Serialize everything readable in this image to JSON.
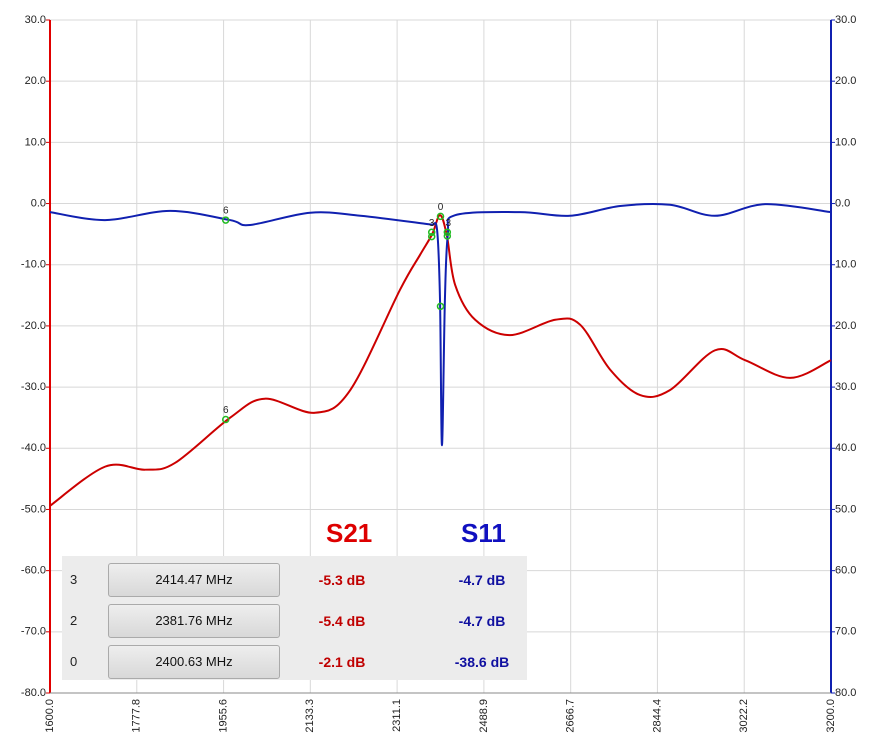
{
  "chart_data": {
    "type": "line",
    "xlim": [
      1600,
      3200
    ],
    "xticks": [
      {
        "value": 1600,
        "label": "1600.0"
      },
      {
        "value": 1777.8,
        "label": "1777.8"
      },
      {
        "value": 1955.6,
        "label": "1955.6"
      },
      {
        "value": 2133.3,
        "label": "2133.3"
      },
      {
        "value": 2311.1,
        "label": "2311.1"
      },
      {
        "value": 2488.9,
        "label": "2488.9"
      },
      {
        "value": 2666.7,
        "label": "2666.7"
      },
      {
        "value": 2844.4,
        "label": "2844.4"
      },
      {
        "value": 3022.2,
        "label": "3022.2"
      },
      {
        "value": 3200,
        "label": "3200.0"
      }
    ],
    "ylim": [
      -80,
      30
    ],
    "yticks": [
      {
        "value": 30,
        "label": "30.0"
      },
      {
        "value": 20,
        "label": "20.0"
      },
      {
        "value": 10,
        "label": "10.0"
      },
      {
        "value": 0,
        "label": "0.0"
      },
      {
        "value": -10,
        "label": "-10.0"
      },
      {
        "value": -20,
        "label": "-20.0"
      },
      {
        "value": -30,
        "label": "-30.0"
      },
      {
        "value": -40,
        "label": "-40.0"
      },
      {
        "value": -50,
        "label": "-50.0"
      },
      {
        "value": -60,
        "label": "-60.0"
      },
      {
        "value": -70,
        "label": "-70.0"
      },
      {
        "value": -80,
        "label": "-80.0"
      }
    ],
    "y2lim": [
      -80,
      30
    ],
    "y2ticks": [
      {
        "value": 30,
        "label": "30.0"
      },
      {
        "value": 20,
        "label": "20.0"
      },
      {
        "value": 10,
        "label": "10.0"
      },
      {
        "value": 0,
        "label": "0.0"
      },
      {
        "value": -10,
        "label": "10.0"
      },
      {
        "value": -20,
        "label": "20.0"
      },
      {
        "value": -30,
        "label": "30.0"
      },
      {
        "value": -40,
        "label": "40.0"
      },
      {
        "value": -50,
        "label": "50.0"
      },
      {
        "value": -60,
        "label": "60.0"
      },
      {
        "value": -70,
        "label": "70.0"
      },
      {
        "value": -80,
        "label": "80.0"
      }
    ],
    "grid": true,
    "series": [
      {
        "name": "S21",
        "color": "#cc0000",
        "x": [
          1600,
          1713,
          1795,
          1856,
          1969,
          2040,
          2143,
          2215,
          2317,
          2358,
          2383,
          2399,
          2413,
          2430,
          2471,
          2542,
          2635,
          2686,
          2747,
          2809,
          2870,
          2962,
          3024,
          3116,
          3200
        ],
        "values": [
          -49.4,
          -43.0,
          -43.5,
          -42.4,
          -35.0,
          -31.9,
          -34.2,
          -30.5,
          -14.1,
          -8.4,
          -5.0,
          -1.9,
          -5.2,
          -13.3,
          -19.0,
          -21.5,
          -19.0,
          -19.8,
          -27.1,
          -31.3,
          -30.5,
          -24.0,
          -25.6,
          -28.5,
          -25.6
        ]
      },
      {
        "name": "S11",
        "color": "#1020b0",
        "x": [
          1600,
          1713,
          1846,
          1969,
          2010,
          2133,
          2236,
          2368,
          2383,
          2393,
          2399,
          2403,
          2409,
          2415,
          2430,
          2563,
          2665,
          2768,
          2870,
          2962,
          3065,
          3200
        ],
        "values": [
          -1.4,
          -2.7,
          -1.2,
          -2.7,
          -3.5,
          -1.5,
          -2.0,
          -3.3,
          -3.5,
          -4.3,
          -15.8,
          -39.5,
          -15.8,
          -5.1,
          -1.9,
          -1.4,
          -2.0,
          -0.4,
          -0.2,
          -2.0,
          -0.1,
          -1.4
        ]
      }
    ],
    "points": [
      {
        "x": 1960,
        "y": -35.3,
        "label": "6"
      },
      {
        "x": 1960,
        "y": -2.7,
        "label": "6"
      },
      {
        "x": 2382,
        "y": -4.7,
        "label": "3"
      },
      {
        "x": 2382,
        "y": -5.4
      },
      {
        "x": 2400,
        "y": -2.1,
        "label": "0"
      },
      {
        "x": 2400,
        "y": -16.8
      },
      {
        "x": 2414,
        "y": -4.7,
        "label": "3"
      },
      {
        "x": 2414,
        "y": -5.3
      }
    ]
  },
  "table": {
    "rows": [
      {
        "id": "3",
        "freq": "2414.47 MHz",
        "s21": "-5.3 dB",
        "s11": "-4.7 dB"
      },
      {
        "id": "2",
        "freq": "2381.76 MHz",
        "s21": "-5.4 dB",
        "s11": "-4.7 dB"
      },
      {
        "id": "0",
        "freq": "2400.63 MHz",
        "s21": "-2.1 dB",
        "s11": "-38.6 dB"
      }
    ]
  }
}
